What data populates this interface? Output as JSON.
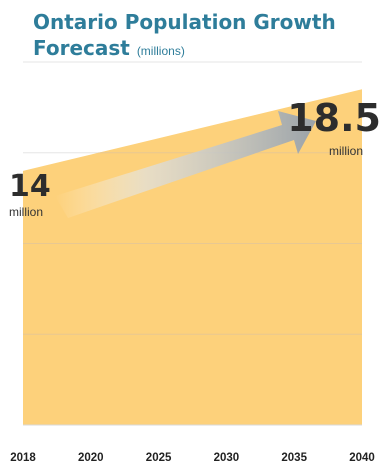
{
  "title": {
    "line1": "Ontario Population Growth",
    "line2": "Forecast",
    "unit": "(millions)"
  },
  "start_label": {
    "value": "14",
    "unit": "million"
  },
  "end_label": {
    "value": "18.5",
    "unit": "million"
  },
  "colors": {
    "title": "#2e7d9a",
    "area": "#fdd17b",
    "gridline": "#e8c892",
    "arrow": "#9aa2a8"
  },
  "chart_data": {
    "type": "area",
    "title": "Ontario Population Growth Forecast (millions)",
    "x_ticks": [
      "2018",
      "2020",
      "2025",
      "2030",
      "2035",
      "2040"
    ],
    "series": [
      {
        "x": [
          2018,
          2040
        ],
        "values": [
          14,
          18.5
        ]
      }
    ],
    "ylim": [
      0,
      20
    ],
    "grid": true,
    "legend": "none"
  }
}
